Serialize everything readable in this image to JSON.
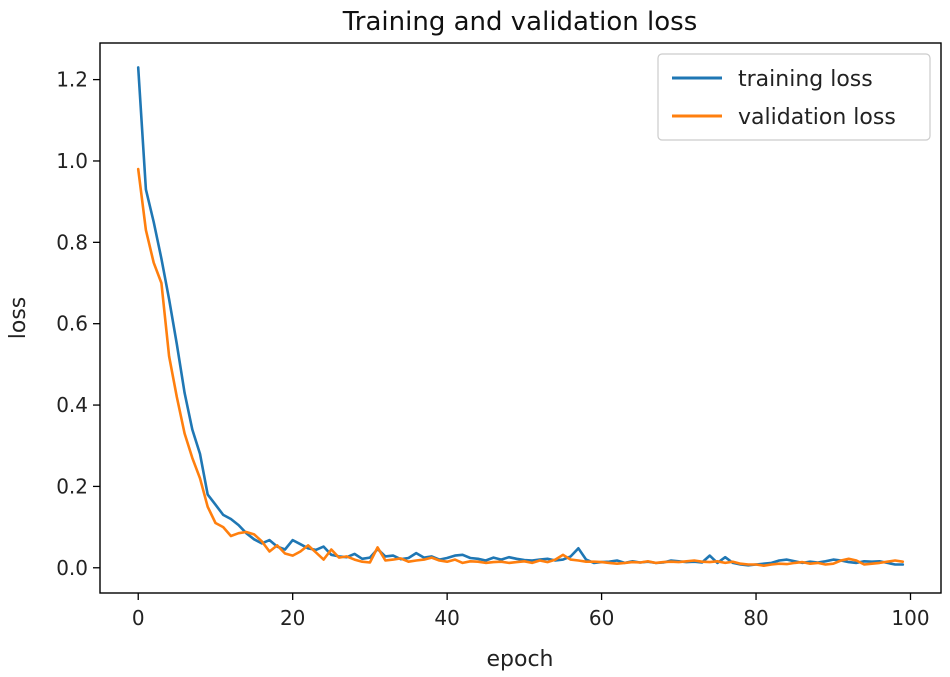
{
  "chart_data": {
    "type": "line",
    "title": "Training and validation loss",
    "xlabel": "epoch",
    "ylabel": "loss",
    "xlim": [
      -4.95,
      103.95
    ],
    "ylim": [
      -0.062,
      1.29
    ],
    "xticks": [
      0,
      20,
      40,
      60,
      80,
      100
    ],
    "yticks": [
      0.0,
      0.2,
      0.4,
      0.6,
      0.8,
      1.0,
      1.2
    ],
    "xtick_labels": [
      "0",
      "20",
      "40",
      "60",
      "80",
      "100"
    ],
    "ytick_labels": [
      "0.0",
      "0.2",
      "0.4",
      "0.6",
      "0.8",
      "1.0",
      "1.2"
    ],
    "grid": false,
    "legend_position": "top-right",
    "series": [
      {
        "name": "training loss",
        "color": "#1f77b4",
        "x": [
          0,
          1,
          2,
          3,
          4,
          5,
          6,
          7,
          8,
          9,
          10,
          11,
          12,
          13,
          14,
          15,
          16,
          17,
          18,
          19,
          20,
          21,
          22,
          23,
          24,
          25,
          26,
          27,
          28,
          29,
          30,
          31,
          32,
          33,
          34,
          35,
          36,
          37,
          38,
          39,
          40,
          41,
          42,
          43,
          44,
          45,
          46,
          47,
          48,
          49,
          50,
          51,
          52,
          53,
          54,
          55,
          56,
          57,
          58,
          59,
          60,
          61,
          62,
          63,
          64,
          65,
          66,
          67,
          68,
          69,
          70,
          71,
          72,
          73,
          74,
          75,
          76,
          77,
          78,
          79,
          80,
          81,
          82,
          83,
          84,
          85,
          86,
          87,
          88,
          89,
          90,
          91,
          92,
          93,
          94,
          95,
          96,
          97,
          98,
          99
        ],
        "values": [
          1.23,
          0.93,
          0.85,
          0.76,
          0.66,
          0.55,
          0.43,
          0.34,
          0.28,
          0.18,
          0.155,
          0.13,
          0.12,
          0.105,
          0.085,
          0.07,
          0.06,
          0.068,
          0.052,
          0.045,
          0.068,
          0.058,
          0.048,
          0.044,
          0.052,
          0.032,
          0.028,
          0.026,
          0.034,
          0.022,
          0.025,
          0.046,
          0.028,
          0.03,
          0.021,
          0.024,
          0.036,
          0.025,
          0.028,
          0.02,
          0.024,
          0.03,
          0.032,
          0.024,
          0.022,
          0.018,
          0.025,
          0.02,
          0.026,
          0.022,
          0.019,
          0.018,
          0.02,
          0.022,
          0.018,
          0.02,
          0.028,
          0.048,
          0.02,
          0.012,
          0.014,
          0.015,
          0.018,
          0.012,
          0.016,
          0.013,
          0.015,
          0.012,
          0.013,
          0.018,
          0.016,
          0.014,
          0.015,
          0.013,
          0.03,
          0.012,
          0.026,
          0.012,
          0.008,
          0.006,
          0.008,
          0.01,
          0.012,
          0.018,
          0.02,
          0.016,
          0.012,
          0.015,
          0.013,
          0.016,
          0.02,
          0.018,
          0.014,
          0.012,
          0.016,
          0.015,
          0.016,
          0.012,
          0.008,
          0.008
        ]
      },
      {
        "name": "validation loss",
        "color": "#ff7f0e",
        "x": [
          0,
          1,
          2,
          3,
          4,
          5,
          6,
          7,
          8,
          9,
          10,
          11,
          12,
          13,
          14,
          15,
          16,
          17,
          18,
          19,
          20,
          21,
          22,
          23,
          24,
          25,
          26,
          27,
          28,
          29,
          30,
          31,
          32,
          33,
          34,
          35,
          36,
          37,
          38,
          39,
          40,
          41,
          42,
          43,
          44,
          45,
          46,
          47,
          48,
          49,
          50,
          51,
          52,
          53,
          54,
          55,
          56,
          57,
          58,
          59,
          60,
          61,
          62,
          63,
          64,
          65,
          66,
          67,
          68,
          69,
          70,
          71,
          72,
          73,
          74,
          75,
          76,
          77,
          78,
          79,
          80,
          81,
          82,
          83,
          84,
          85,
          86,
          87,
          88,
          89,
          90,
          91,
          92,
          93,
          94,
          95,
          96,
          97,
          98,
          99
        ],
        "values": [
          0.98,
          0.83,
          0.75,
          0.7,
          0.52,
          0.42,
          0.33,
          0.27,
          0.22,
          0.15,
          0.11,
          0.1,
          0.078,
          0.085,
          0.088,
          0.082,
          0.065,
          0.04,
          0.055,
          0.035,
          0.03,
          0.04,
          0.055,
          0.038,
          0.02,
          0.045,
          0.025,
          0.028,
          0.02,
          0.015,
          0.013,
          0.05,
          0.018,
          0.02,
          0.023,
          0.015,
          0.018,
          0.02,
          0.025,
          0.018,
          0.015,
          0.02,
          0.012,
          0.016,
          0.015,
          0.012,
          0.014,
          0.015,
          0.012,
          0.014,
          0.016,
          0.012,
          0.018,
          0.014,
          0.02,
          0.032,
          0.02,
          0.018,
          0.015,
          0.015,
          0.014,
          0.012,
          0.01,
          0.012,
          0.014,
          0.013,
          0.016,
          0.012,
          0.014,
          0.015,
          0.014,
          0.016,
          0.018,
          0.015,
          0.014,
          0.016,
          0.012,
          0.015,
          0.01,
          0.008,
          0.008,
          0.005,
          0.008,
          0.01,
          0.009,
          0.012,
          0.014,
          0.01,
          0.012,
          0.008,
          0.01,
          0.018,
          0.022,
          0.018,
          0.008,
          0.01,
          0.012,
          0.015,
          0.018,
          0.015
        ]
      }
    ]
  }
}
